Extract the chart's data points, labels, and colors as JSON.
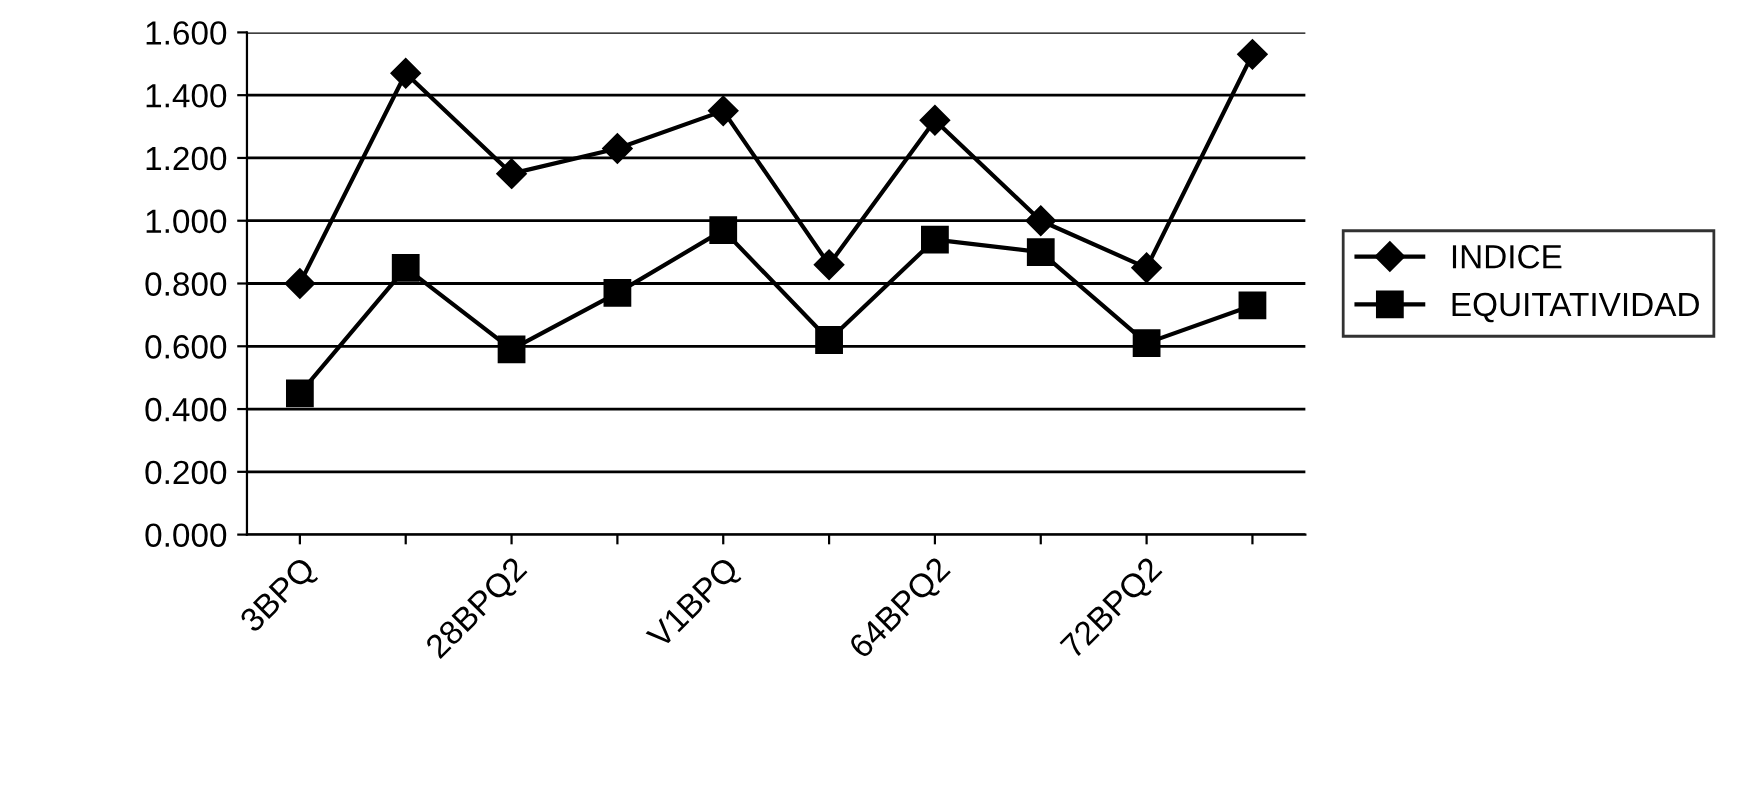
{
  "chart_data": {
    "type": "line",
    "categories": [
      "3BPQ",
      null,
      "28BPQ2",
      null,
      "V1BPQ",
      null,
      "64BPQ2",
      null,
      "72BPQ2",
      null
    ],
    "series": [
      {
        "name": "INDICE",
        "color": "#000000",
        "marker": "diamond",
        "values": [
          0.8,
          1.47,
          1.15,
          1.23,
          1.35,
          0.86,
          1.32,
          1.0,
          0.85,
          1.53
        ]
      },
      {
        "name": "EQUITATIVIDAD",
        "color": "#000000",
        "marker": "square",
        "values": [
          0.45,
          0.85,
          0.59,
          0.77,
          0.97,
          0.62,
          0.94,
          0.9,
          0.61,
          0.73
        ]
      }
    ],
    "ylim": [
      0,
      1.6
    ],
    "yticks": [
      {
        "value": 0,
        "label": "0.000"
      },
      {
        "value": 0.2,
        "label": "0.200"
      },
      {
        "value": 0.4,
        "label": "0.400"
      },
      {
        "value": 0.6,
        "label": "0.600"
      },
      {
        "value": 0.8,
        "label": "0.800"
      },
      {
        "value": 1.0,
        "label": "1.000"
      },
      {
        "value": 1.2,
        "label": "1.200"
      },
      {
        "value": 1.4,
        "label": "1.400"
      },
      {
        "value": 1.6,
        "label": "1.600"
      }
    ],
    "grid": "y",
    "legend": "right",
    "line_style": "solid"
  }
}
